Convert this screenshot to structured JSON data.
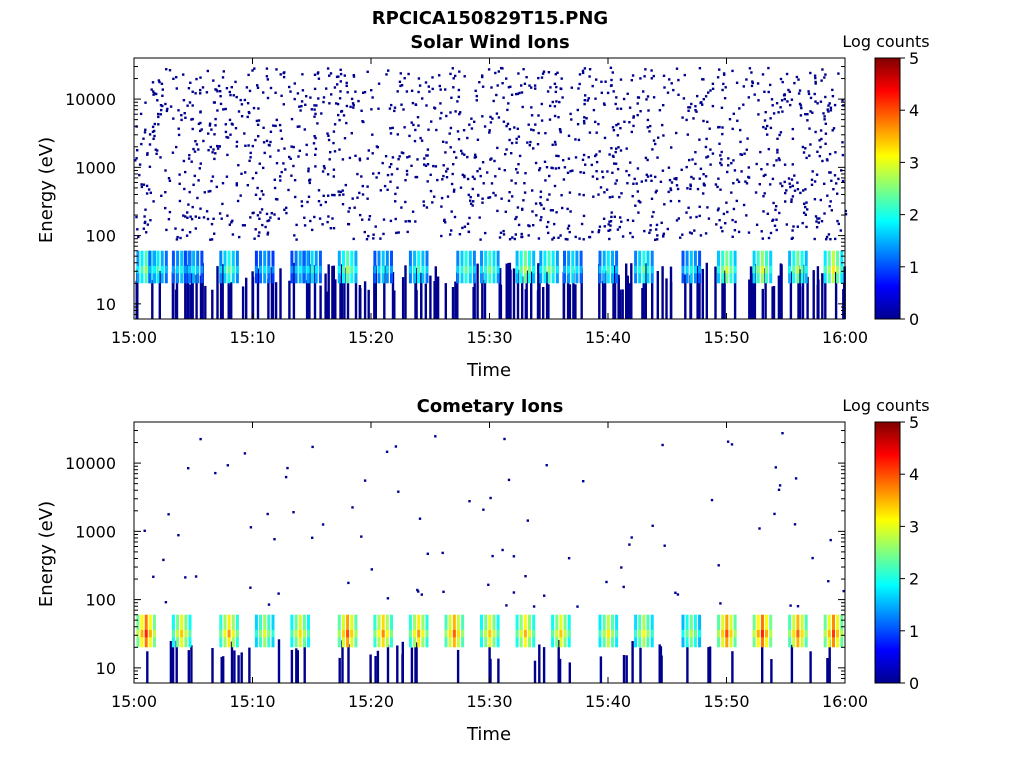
{
  "figure": {
    "title": "RPCICA150829T15.PNG"
  },
  "chart_data": [
    {
      "type": "heatmap",
      "title": "Solar Wind Ions",
      "xlabel": "Time",
      "ylabel": "Energy (eV)",
      "x_ticks": [
        "15:00",
        "15:10",
        "15:20",
        "15:30",
        "15:40",
        "15:50",
        "16:00"
      ],
      "x_range": [
        "15:00",
        "16:00"
      ],
      "y_scale": "log",
      "y_ticks": [
        10,
        100,
        1000,
        10000
      ],
      "y_ticklabels": [
        "10",
        "100",
        "1000",
        "10000"
      ],
      "y_range": [
        6,
        40000
      ],
      "colorbar": {
        "label": "Log counts",
        "range": [
          0,
          5
        ],
        "ticks": [
          "0",
          "1",
          "2",
          "3",
          "4",
          "5"
        ],
        "colormap": "jet"
      },
      "peak_band_energy_eV": [
        20,
        60
      ],
      "peak_band_times": [
        "15:01",
        "15:02",
        "15:04",
        "15:05",
        "15:08",
        "15:11",
        "15:14",
        "15:15",
        "15:18",
        "15:21",
        "15:24",
        "15:28",
        "15:30",
        "15:33",
        "15:35",
        "15:37",
        "15:40",
        "15:43",
        "15:47",
        "15:50",
        "15:53",
        "15:56",
        "15:59"
      ],
      "peak_band_levels": [
        2.2,
        1.8,
        1.6,
        1.5,
        2.0,
        1.4,
        1.5,
        1.7,
        2.3,
        1.6,
        1.9,
        2.0,
        2.1,
        2.4,
        2.2,
        1.7,
        1.8,
        2.0,
        1.6,
        2.5,
        2.6,
        2.4,
        2.8
      ],
      "background_level": 0.3,
      "background_extent_eV": [
        6,
        40000
      ]
    },
    {
      "type": "heatmap",
      "title": "Cometary Ions",
      "xlabel": "Time",
      "ylabel": "Energy (eV)",
      "x_ticks": [
        "15:00",
        "15:10",
        "15:20",
        "15:30",
        "15:40",
        "15:50",
        "16:00"
      ],
      "x_range": [
        "15:00",
        "16:00"
      ],
      "y_scale": "log",
      "y_ticks": [
        10,
        100,
        1000,
        10000
      ],
      "y_ticklabels": [
        "10",
        "100",
        "1000",
        "10000"
      ],
      "y_range": [
        6,
        40000
      ],
      "colorbar": {
        "label": "Log counts",
        "range": [
          0,
          5
        ],
        "ticks": [
          "0",
          "1",
          "2",
          "3",
          "4",
          "5"
        ],
        "colormap": "jet"
      },
      "peak_band_energy_eV": [
        20,
        60
      ],
      "peak_band_times": [
        "15:01",
        "15:04",
        "15:08",
        "15:11",
        "15:14",
        "15:18",
        "15:21",
        "15:24",
        "15:27",
        "15:30",
        "15:33",
        "15:36",
        "15:40",
        "15:43",
        "15:47",
        "15:50",
        "15:53",
        "15:56",
        "15:59"
      ],
      "peak_band_levels": [
        3.8,
        3.0,
        3.2,
        2.6,
        2.9,
        3.6,
        3.3,
        3.2,
        3.5,
        3.0,
        3.1,
        3.0,
        2.8,
        2.7,
        2.4,
        3.6,
        3.8,
        3.5,
        3.7
      ],
      "sparse_counts_level": 0.2,
      "sparse_counts_extent_eV": [
        100,
        40000
      ]
    }
  ]
}
